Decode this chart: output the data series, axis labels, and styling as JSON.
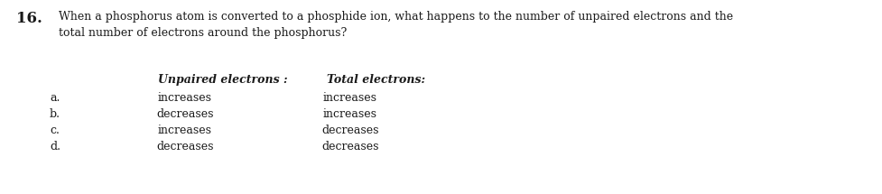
{
  "question_number": "16.",
  "question_line1": "When a phosphorus atom is converted to a phosphide ion, what happens to the number of unpaired electrons and the",
  "question_line2": "total number of electrons around the phosphorus?",
  "col1_header": "Unpaired electrons :",
  "col2_header": "Total electrons:",
  "options": [
    "a.",
    "b.",
    "c.",
    "d."
  ],
  "col1_values": [
    "increases",
    "decreases",
    "increases",
    "decreases"
  ],
  "col2_values": [
    "increases",
    "increases",
    "decreases",
    "decreases"
  ],
  "bg_color": "#ffffff",
  "text_color": "#1a1a1a",
  "font_size_question": 9.0,
  "font_size_number": 12,
  "font_size_options": 9.0,
  "font_size_header": 9.0
}
